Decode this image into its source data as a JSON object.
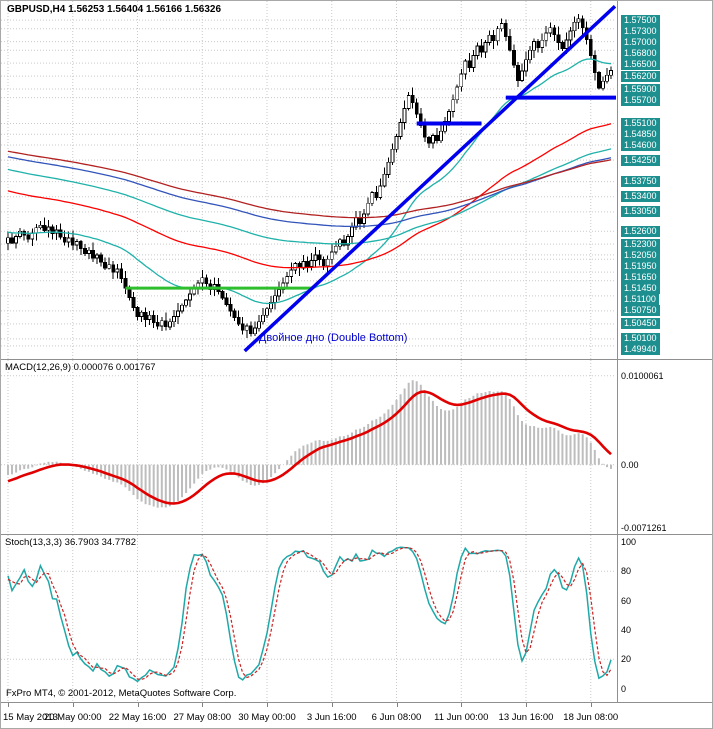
{
  "header": {
    "title_line": "GBPUSD,H4 1.56253 1.56404 1.56166 1.56326"
  },
  "footer": {
    "copyright": "FxPro MT4, © 2001-2012, MetaQuotes Software Corp."
  },
  "chart_data": {
    "type": "candlestick",
    "symbol": "GBPUSD",
    "timeframe": "H4",
    "ohlc_display": {
      "open": "1.56253",
      "high": "1.56404",
      "low": "1.56166",
      "close": "1.56326"
    },
    "colors": {
      "grid": "#C9C9C9",
      "bull": "#FFFFFF",
      "bear": "#000000",
      "outline": "#000000",
      "axis_label_bg": "#1E8F8F",
      "axis_label_fg": "#FFFFFF"
    },
    "price_axis": {
      "min": 1.4975,
      "max": 1.5785,
      "labels": [
        "1.57500",
        "1.57300",
        "1.57000",
        "1.56800",
        "1.56500",
        "1.56200",
        "1.55900",
        "1.55700",
        "1.55100",
        "1.54850",
        "1.54600",
        "1.54250",
        "1.53750",
        "1.53400",
        "1.53050",
        "1.52600",
        "1.52300",
        "1.52050",
        "1.51950",
        "1.51650",
        "1.51450",
        "1.51100",
        "1.50750",
        "1.50450",
        "1.50100",
        "1.49940"
      ]
    },
    "time_axis": {
      "labels": [
        "15 May 2013",
        "20 May 00:00",
        "22 May 16:00",
        "27 May 08:00",
        "30 May 00:00",
        "3 Jun 16:00",
        "6 Jun 08:00",
        "11 Jun 00:00",
        "13 Jun 16:00",
        "18 Jun 08:00"
      ],
      "indices": [
        0,
        16,
        32,
        48,
        64,
        80,
        96,
        112,
        128,
        144
      ]
    },
    "candles": {
      "first_open": 1.5565,
      "history_closes": [
        1.556,
        1.5548,
        1.5555,
        1.5542,
        1.553,
        1.5538,
        1.5525,
        1.5515,
        1.5522,
        1.5508,
        1.5498,
        1.5505,
        1.5492,
        1.5482,
        1.549,
        1.5476,
        1.5466,
        1.5473,
        1.546,
        1.545,
        1.5458,
        1.5444,
        1.5435,
        1.5442,
        1.5428,
        1.5418,
        1.5426,
        1.5412,
        1.5402,
        1.541,
        1.5396,
        1.5386,
        1.5394,
        1.538,
        1.537,
        1.5378,
        1.5364,
        1.5355,
        1.5362,
        1.5348,
        1.5338,
        1.5346,
        1.5332,
        1.5322,
        1.533,
        1.5316,
        1.5307,
        1.5314,
        1.53,
        1.529,
        1.5298,
        1.5284,
        1.5275,
        1.5282,
        1.5268,
        1.5258,
        1.5266,
        1.5252,
        1.5243,
        1.525,
        1.5236,
        1.5227,
        1.5234,
        1.522,
        1.5211,
        1.5218,
        1.5224,
        1.5212,
        1.522,
        1.5228,
        1.5216,
        1.5224,
        1.5232,
        1.522,
        1.5228,
        1.5236,
        1.5226,
        1.5234,
        1.5242,
        1.5232
      ],
      "closes": [
        1.5245,
        1.5233,
        1.5248,
        1.526,
        1.5251,
        1.5242,
        1.5256,
        1.5268,
        1.5274,
        1.5262,
        1.527,
        1.5255,
        1.5263,
        1.5246,
        1.5235,
        1.5244,
        1.5228,
        1.5236,
        1.522,
        1.5208,
        1.5216,
        1.5198,
        1.5205,
        1.5188,
        1.5174,
        1.5182,
        1.5165,
        1.5172,
        1.515,
        1.5128,
        1.5106,
        1.5083,
        1.5062,
        1.5072,
        1.5055,
        1.5065,
        1.5048,
        1.504,
        1.5052,
        1.5038,
        1.505,
        1.5062,
        1.5075,
        1.5088,
        1.51,
        1.5114,
        1.5128,
        1.514,
        1.5152,
        1.5138,
        1.5124,
        1.5136,
        1.512,
        1.5105,
        1.509,
        1.5075,
        1.506,
        1.5045,
        1.503,
        1.504,
        1.5022,
        1.5035,
        1.505,
        1.5065,
        1.508,
        1.5095,
        1.511,
        1.5125,
        1.514,
        1.5155,
        1.517,
        1.5185,
        1.5175,
        1.519,
        1.5178,
        1.5192,
        1.5205,
        1.5194,
        1.518,
        1.5195,
        1.5212,
        1.5225,
        1.524,
        1.5228,
        1.5248,
        1.527,
        1.5292,
        1.5278,
        1.53,
        1.5325,
        1.535,
        1.5338,
        1.5365,
        1.5392,
        1.542,
        1.545,
        1.548,
        1.5512,
        1.5545,
        1.5575,
        1.5558,
        1.5532,
        1.5505,
        1.5478,
        1.5465,
        1.5482,
        1.547,
        1.5492,
        1.5515,
        1.5538,
        1.5565,
        1.5595,
        1.5625,
        1.5655,
        1.564,
        1.5668,
        1.569,
        1.5676,
        1.5698,
        1.5715,
        1.5702,
        1.573,
        1.5742,
        1.5712,
        1.568,
        1.5645,
        1.561,
        1.5632,
        1.5658,
        1.568,
        1.57,
        1.5686,
        1.5703,
        1.572,
        1.5732,
        1.5716,
        1.5698,
        1.5684,
        1.5704,
        1.5725,
        1.5745,
        1.5753,
        1.5732,
        1.5705,
        1.5668,
        1.5628,
        1.5592,
        1.5608,
        1.5622,
        1.5633
      ]
    },
    "moving_averages": [
      {
        "period": 34,
        "color": "#20B2AA"
      },
      {
        "period": 96,
        "color": "#FF0000"
      },
      {
        "period": 150,
        "color": "#20B2AA"
      },
      {
        "period": 200,
        "color": "#3355BB"
      },
      {
        "period": 230,
        "color": "#B22222"
      }
    ],
    "objects": {
      "trendline": {
        "from_index": 58.5,
        "from_price": 1.4982,
        "to_index": 150,
        "to_price": 1.5782,
        "color": "#0000EE",
        "width": 3.5
      },
      "hlines": [
        {
          "price": 1.557,
          "from_index": 123,
          "to_index": 152,
          "color": "#0000EE",
          "width": 4
        },
        {
          "price": 1.551,
          "from_index": 101,
          "to_index": 117,
          "color": "#0000EE",
          "width": 4
        },
        {
          "price": 1.5128,
          "from_index": 29,
          "to_index": 75,
          "color": "#2EBE2E",
          "width": 3
        }
      ],
      "annotation": {
        "text": "Двойное дно (Double Bottom)",
        "index": 62,
        "price": 1.5026,
        "color": "#0000CD"
      }
    },
    "macd": {
      "label": "MACD(12,26,9) 0.000076 0.001767",
      "fast": 12,
      "slow": 26,
      "signal": 9,
      "axis_labels": [
        "0.0100061",
        "0.00",
        "-0.0071261"
      ],
      "axis_values": [
        0.0100061,
        0,
        -0.0071261
      ],
      "grid_values": [
        0.0100061,
        0
      ],
      "scale_max": 0.01133,
      "scale_min": -0.00734,
      "peak_display": 0.0095,
      "colors": {
        "histogram": "#BDBDBD",
        "signal": "#E00000"
      }
    },
    "stoch": {
      "label": "Stoch(13,3,3) 36.7903 34.7782",
      "k": 13,
      "slowing": 3,
      "d": 3,
      "axis_labels": [
        "100",
        "80",
        "60",
        "40",
        "20",
        "0"
      ],
      "axis_values": [
        100,
        80,
        60,
        40,
        20,
        0
      ],
      "levels": [
        80,
        20
      ],
      "colors": {
        "main": "#1FA8A8",
        "signal": "#CC2222"
      }
    }
  }
}
